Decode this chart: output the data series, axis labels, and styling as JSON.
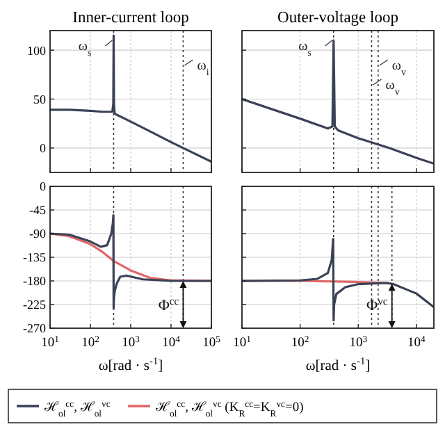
{
  "chart_data": [
    {
      "type": "line",
      "title": "Inner-current loop",
      "xlim": [
        10,
        100000
      ],
      "ylim": [
        -25,
        120
      ],
      "log": "x",
      "grid": true,
      "tick_labels": "y",
      "yticks": [
        0,
        50,
        100
      ],
      "xticks": [
        10,
        100,
        1000,
        10000,
        100000
      ],
      "ref_lines": [
        {
          "axis": "x",
          "value": 377,
          "label": "ω$_{s}$",
          "color": "#333333",
          "line_style": "dotted"
        },
        {
          "axis": "x",
          "value": 20000,
          "label": "ω$_{i}$",
          "color": "#333333",
          "line_style": "dotted"
        }
      ],
      "series": [
        {
          "color": "#3b4256",
          "x": [
            10,
            30,
            100,
            200,
            300,
            350,
            370,
            377,
            385,
            400,
            450,
            1000,
            3000,
            10000,
            20000,
            100000
          ],
          "values": [
            39,
            39,
            38,
            37,
            37,
            37,
            45,
            115,
            45,
            35,
            34,
            27,
            17,
            6,
            0,
            -14
          ]
        }
      ]
    },
    {
      "type": "line",
      "title": "Outer-voltage loop",
      "xlim": [
        10,
        20000
      ],
      "ylim": [
        -25,
        120
      ],
      "log": "x",
      "grid": true,
      "tick_labels": false,
      "yticks": [
        0,
        50,
        100
      ],
      "xticks": [
        10,
        100,
        1000,
        10000
      ],
      "ref_lines": [
        {
          "axis": "x",
          "value": 377,
          "label": "ω$_{s}$",
          "color": "#333333",
          "line_style": "dotted"
        },
        {
          "axis": "x",
          "value": 2200,
          "label": "ω$_{v}$",
          "color": "#333333",
          "line_style": "dotted"
        },
        {
          "axis": "x",
          "value": 1700,
          "label": "ω$_{v}$",
          "color": "#333333",
          "line_style": "dotted"
        }
      ],
      "series": [
        {
          "color": "#3b4256",
          "x": [
            10,
            100,
            300,
            360,
            377,
            395,
            450,
            1000,
            3400,
            10000,
            20000
          ],
          "values": [
            50,
            30,
            20,
            22,
            110,
            22,
            18,
            10,
            0,
            -10,
            -16
          ]
        }
      ]
    },
    {
      "type": "line",
      "xlim": [
        10,
        100000
      ],
      "ylim": [
        -270,
        0
      ],
      "log": "x",
      "grid": true,
      "yticks": [
        0,
        -45,
        -90,
        -135,
        -180,
        -225,
        -270
      ],
      "xticks": [
        {
          "value": 10,
          "label": "10$^{1}$"
        },
        {
          "value": 100,
          "label": "10$^{2}$"
        },
        {
          "value": 1000,
          "label": "10$^{3}$"
        },
        {
          "value": 10000,
          "label": "10$^{4}$"
        },
        {
          "value": 100000,
          "label": "10$^{5}$"
        }
      ],
      "xlabel": "ω[rad · s$^{-1}$]",
      "ref_lines": [
        {
          "axis": "x",
          "value": 377,
          "color": "#333333",
          "line_style": "dotted"
        },
        {
          "axis": "x",
          "value": 20000,
          "color": "#333333",
          "line_style": "dotted"
        }
      ],
      "annotations": [
        {
          "text": "Φ$^{cc}$",
          "x": 20000,
          "y": -225
        }
      ],
      "series": [
        {
          "color": "#e06666",
          "x": [
            10,
            30,
            100,
            200,
            377,
            1000,
            3000,
            10000,
            100000
          ],
          "values": [
            -90,
            -95,
            -110,
            -125,
            -142,
            -160,
            -174,
            -179,
            -180
          ]
        },
        {
          "color": "#3b4256",
          "x": [
            10,
            30,
            100,
            180,
            260,
            330,
            360,
            372,
            377,
            382,
            400,
            450,
            550,
            800,
            2000,
            10000,
            100000
          ],
          "values": [
            -90,
            -92,
            -105,
            -115,
            -112,
            -90,
            -70,
            -55,
            -232,
            -215,
            -200,
            -185,
            -172,
            -170,
            -177,
            -180,
            -180
          ]
        }
      ]
    },
    {
      "type": "line",
      "xlim": [
        10,
        20000
      ],
      "ylim": [
        -270,
        0
      ],
      "log": "x",
      "grid": true,
      "tick_labels": "x",
      "yticks": [
        0,
        -45,
        -90,
        -135,
        -180,
        -225,
        -270
      ],
      "xticks": [
        {
          "value": 10,
          "label": "10$^{1}$"
        },
        {
          "value": 100,
          "label": "10$^{2}$"
        },
        {
          "value": 1000,
          "label": "10$^{3}$"
        },
        {
          "value": 10000,
          "label": "10$^{4}$"
        }
      ],
      "xlabel": "ω[rad · s$^{-1}$]",
      "legend": "bottom",
      "ref_lines": [
        {
          "axis": "x",
          "value": 377,
          "color": "#333333",
          "line_style": "dotted"
        },
        {
          "axis": "x",
          "value": 2200,
          "color": "#333333",
          "line_style": "dotted"
        },
        {
          "axis": "x",
          "value": 1700,
          "color": "#333333",
          "line_style": "dotted"
        },
        {
          "axis": "x",
          "value": 3800,
          "color": "#333333",
          "line_style": "dotted"
        }
      ],
      "annotations": [
        {
          "text": "Φ$^{vc}$",
          "x": 3800,
          "y": -225
        }
      ],
      "series": [
        {
          "name": "ℋ$_{ol}$$^{cc}$, ℋ$_{ol}$$^{vc}$ (K$_{R}$$^{cc}$=K$_{R}$$^{vc}$=0)",
          "color": "#e06666",
          "x": [
            10,
            100,
            1000,
            3000,
            4000
          ],
          "values": [
            -180,
            -180,
            -182,
            -184,
            -186
          ]
        },
        {
          "name": "ℋ$_{ol}$$^{cc}$, ℋ$_{ol}$$^{vc}$",
          "color": "#3b4256",
          "x": [
            10,
            100,
            200,
            300,
            350,
            370,
            377,
            385,
            420,
            600,
            1000,
            3000,
            4000,
            10000,
            20000
          ],
          "values": [
            -180,
            -179,
            -176,
            -165,
            -140,
            -100,
            -255,
            -225,
            -205,
            -192,
            -186,
            -184,
            -186,
            -204,
            -230
          ]
        }
      ]
    }
  ]
}
